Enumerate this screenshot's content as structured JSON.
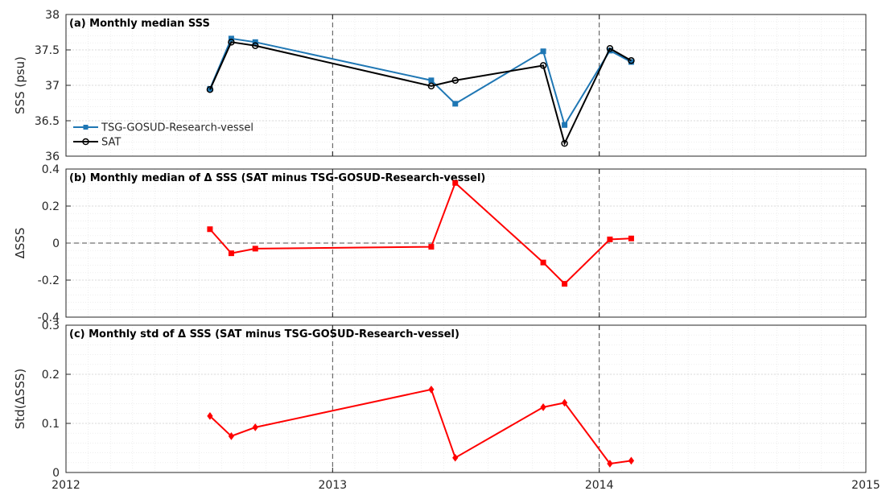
{
  "chart_data": [
    {
      "type": "line",
      "title": "(a) Monthly median SSS",
      "ylabel": "SSS (psu)",
      "xlim": [
        2012,
        2015
      ],
      "ylim": [
        36,
        38
      ],
      "yticks": [
        "36",
        "36.5",
        "37",
        "37.5",
        "38"
      ],
      "grid": true,
      "minor_grid": true,
      "legend_position": "left",
      "series": [
        {
          "name": "TSG-GOSUD-Research-vessel",
          "color": "#1f77b4",
          "marker": "square",
          "x": [
            2012.54,
            2012.62,
            2012.71,
            2013.37,
            2013.46,
            2013.79,
            2013.87,
            2014.04,
            2014.12
          ],
          "y": [
            36.95,
            37.66,
            37.61,
            37.07,
            36.74,
            37.48,
            36.44,
            37.49,
            37.33
          ]
        },
        {
          "name": "SAT",
          "color": "#000000",
          "marker": "circle",
          "x": [
            2012.54,
            2012.62,
            2012.71,
            2013.37,
            2013.46,
            2013.79,
            2013.87,
            2014.04,
            2014.12
          ],
          "y": [
            36.94,
            37.61,
            37.56,
            36.99,
            37.07,
            37.28,
            36.18,
            37.52,
            37.35
          ]
        }
      ]
    },
    {
      "type": "line",
      "title": "(b) Monthly median of Δ SSS (SAT minus TSG-GOSUD-Research-vessel)",
      "ylabel": "ΔSSS",
      "xlim": [
        2012,
        2015
      ],
      "ylim": [
        -0.4,
        0.4
      ],
      "yticks": [
        "-0.4",
        "-0.2",
        "0",
        "0.2",
        "0.4"
      ],
      "grid": true,
      "minor_grid": true,
      "zero_line": true,
      "series": [
        {
          "color": "#ff0000",
          "marker": "square",
          "x": [
            2012.54,
            2012.62,
            2012.71,
            2013.37,
            2013.46,
            2013.79,
            2013.87,
            2014.04,
            2014.12
          ],
          "y": [
            0.075,
            -0.055,
            -0.03,
            -0.02,
            0.325,
            -0.105,
            -0.22,
            0.02,
            0.025
          ]
        }
      ]
    },
    {
      "type": "line",
      "title": "(c) Monthly std of Δ SSS (SAT minus TSG-GOSUD-Research-vessel)",
      "ylabel": "Std(ΔSSS)",
      "xlim": [
        2012,
        2015
      ],
      "xticks": [
        "2012",
        "2013",
        "2014",
        "2015"
      ],
      "ylim": [
        0,
        0.3
      ],
      "yticks": [
        "0",
        "0.1",
        "0.2",
        "0.3"
      ],
      "grid": true,
      "minor_grid": true,
      "series": [
        {
          "color": "#ff0000",
          "marker": "diamond",
          "x": [
            2012.54,
            2012.62,
            2012.71,
            2013.37,
            2013.46,
            2013.79,
            2013.87,
            2014.04,
            2014.12
          ],
          "y": [
            0.115,
            0.074,
            0.092,
            0.169,
            0.03,
            0.133,
            0.142,
            0.018,
            0.024
          ]
        }
      ]
    }
  ]
}
